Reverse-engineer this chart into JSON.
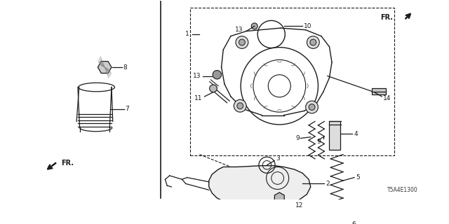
{
  "bg_color": "#ffffff",
  "line_color": "#1a1a1a",
  "part_number": "T5A4E1300",
  "figsize": [
    6.4,
    3.2
  ],
  "dpi": 100
}
